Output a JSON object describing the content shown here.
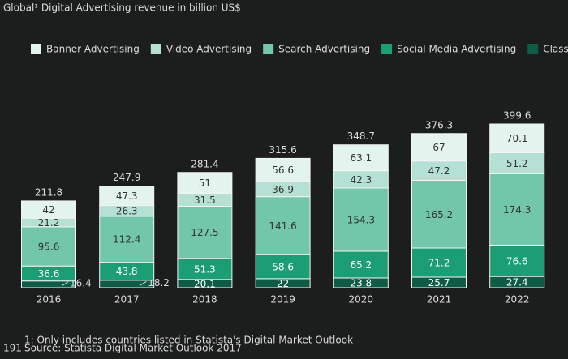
{
  "chart_data": {
    "type": "stacked-bar",
    "title": "Global¹ Digital Advertising revenue in billion US$",
    "categories": [
      "2016",
      "2017",
      "2018",
      "2019",
      "2020",
      "2021",
      "2022"
    ],
    "series": [
      {
        "name": "Banner Advertising",
        "color": "#e3f3ed",
        "values": [
          42.0,
          47.3,
          51.0,
          56.6,
          63.1,
          67.0,
          70.1
        ]
      },
      {
        "name": "Video Advertising",
        "color": "#b4e1d3",
        "values": [
          21.2,
          26.3,
          31.5,
          36.9,
          42.3,
          47.2,
          51.2
        ]
      },
      {
        "name": "Search Advertising",
        "color": "#72c6aa",
        "values": [
          95.6,
          112.4,
          127.5,
          141.6,
          154.3,
          165.2,
          174.3
        ]
      },
      {
        "name": "Social Media Advertising",
        "color": "#1b9e74",
        "values": [
          36.6,
          43.8,
          51.3,
          58.6,
          65.2,
          71.2,
          76.6
        ]
      },
      {
        "name": "Classifieds",
        "color": "#0e5c45",
        "values": [
          16.4,
          18.2,
          20.1,
          22.0,
          23.8,
          25.7,
          27.4
        ]
      }
    ],
    "totals": [
      211.8,
      247.9,
      281.4,
      315.6,
      348.7,
      376.3,
      399.6
    ],
    "ylim": [
      0,
      400
    ],
    "footnote": "1: Only includes countries listed in Statista's Digital Market Outlook",
    "source": "Source: Statista Digital Market Outlook 2017",
    "page_number": "191"
  }
}
